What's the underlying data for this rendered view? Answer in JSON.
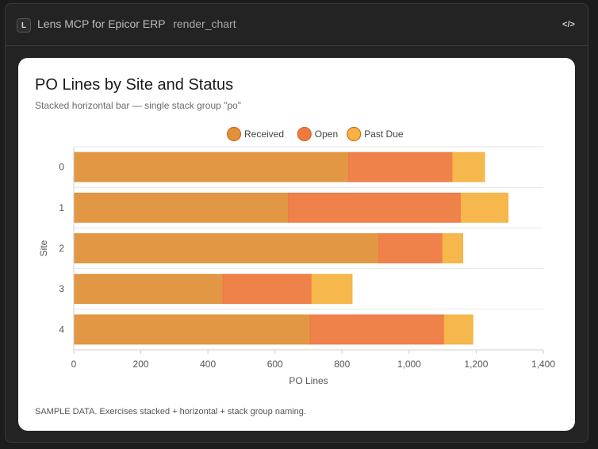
{
  "window": {
    "badge": "L",
    "title": "Lens MCP for Epicor ERP",
    "tool": "render_chart",
    "code_icon": "</>"
  },
  "card": {
    "title": "PO Lines by Site and Status",
    "subtitle": "Stacked horizontal bar — single stack group \"po\"",
    "footnote": "SAMPLE DATA. Exercises stacked + horizontal + stack group naming."
  },
  "chart_data": {
    "type": "bar",
    "orientation": "horizontal",
    "stacked": true,
    "categories": [
      "0",
      "1",
      "2",
      "3",
      "4"
    ],
    "series": [
      {
        "name": "Received",
        "values": [
          820,
          640,
          910,
          445,
          705
        ],
        "color": "#e0913a"
      },
      {
        "name": "Open",
        "values": [
          310,
          515,
          190,
          265,
          400
        ],
        "color": "#ee7a40"
      },
      {
        "name": "Past Due",
        "values": [
          95,
          140,
          60,
          120,
          85
        ],
        "color": "#f6b342"
      }
    ],
    "xlabel": "PO Lines",
    "ylabel": "Site",
    "xlim": [
      0,
      1400
    ],
    "xticks": [
      "0",
      "200",
      "400",
      "600",
      "800",
      "1,000",
      "1,200",
      "1,400"
    ],
    "grid": true,
    "legend_position": "top"
  }
}
